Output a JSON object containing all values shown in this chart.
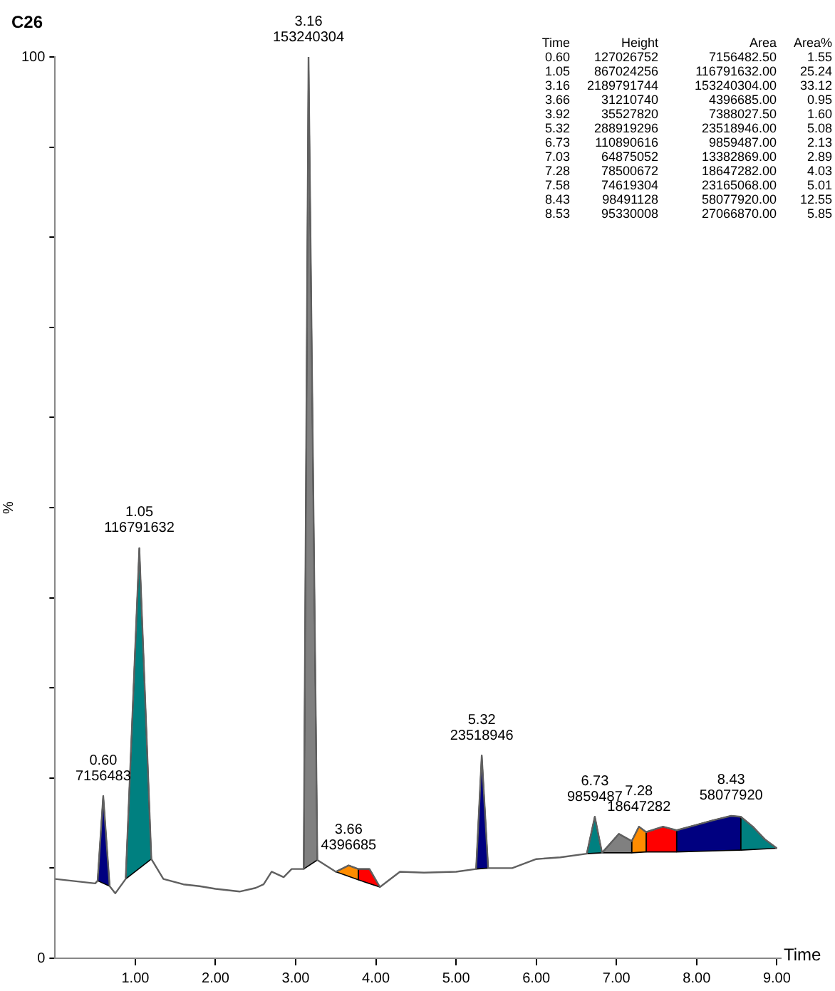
{
  "chart_data": {
    "type": "line",
    "title": "C26",
    "xlabel": "Time",
    "ylabel": "%",
    "xlim": [
      0,
      9.05
    ],
    "ylim": [
      0,
      100
    ],
    "xticks": [
      {
        "value": 1,
        "label": "1.00"
      },
      {
        "value": 2,
        "label": "2.00"
      },
      {
        "value": 3,
        "label": "3.00"
      },
      {
        "value": 4,
        "label": "4.00"
      },
      {
        "value": 5,
        "label": "5.00"
      },
      {
        "value": 6,
        "label": "6.00"
      },
      {
        "value": 7,
        "label": "7.00"
      },
      {
        "value": 8,
        "label": "8.00"
      },
      {
        "value": 9,
        "label": "9.00"
      }
    ],
    "yticks": [
      0,
      {
        "value": 10,
        "label": null
      },
      {
        "value": 20,
        "label": null
      },
      {
        "value": 30,
        "label": null
      },
      {
        "value": 40,
        "label": null
      },
      {
        "value": 50,
        "label": null
      },
      {
        "value": 60,
        "label": null
      },
      {
        "value": 70,
        "label": null
      },
      {
        "value": 80,
        "label": null
      },
      {
        "value": 90,
        "label": null
      },
      100
    ],
    "grid": false,
    "legend": false,
    "marker": "none",
    "line_style": "solid",
    "series": [
      {
        "type": "area",
        "color": "#000080",
        "x": [
          0.53,
          0.6,
          0.68
        ],
        "values": [
          8.6,
          18,
          8.0
        ]
      },
      {
        "type": "area",
        "color": "#008080",
        "x": [
          0.88,
          1.05,
          1.2
        ],
        "values": [
          8.8,
          45.5,
          11
        ]
      },
      {
        "type": "area",
        "color": "#808080",
        "x": [
          3.1,
          3.16,
          3.27
        ],
        "values": [
          9.9,
          100,
          10.9
        ]
      },
      {
        "type": "area",
        "color": "#ff8c00",
        "x": [
          3.5,
          3.66,
          3.78,
          3.78
        ],
        "values": [
          9.6,
          10.3,
          9.9,
          8.7
        ]
      },
      {
        "type": "area",
        "color": "#ff0000",
        "x": [
          3.78,
          3.78,
          3.92,
          4.05
        ],
        "values": [
          8.7,
          9.9,
          9.9,
          7.9
        ]
      },
      {
        "type": "area",
        "color": "#000080",
        "x": [
          5.25,
          5.32,
          5.4
        ],
        "values": [
          9.9,
          22.5,
          10
        ]
      },
      {
        "type": "area",
        "color": "#008080",
        "x": [
          6.63,
          6.73,
          6.82
        ],
        "values": [
          11.6,
          15.7,
          11.7
        ]
      },
      {
        "type": "area",
        "color": "#808080",
        "x": [
          6.82,
          7.03,
          7.19,
          7.19
        ],
        "values": [
          11.7,
          13.8,
          13.0,
          11.7
        ]
      },
      {
        "type": "area",
        "color": "#ff8c00",
        "x": [
          7.19,
          7.19,
          7.28,
          7.37,
          7.37
        ],
        "values": [
          11.7,
          13.0,
          14.6,
          14.0,
          11.8
        ]
      },
      {
        "type": "area",
        "color": "#ff0000",
        "x": [
          7.37,
          7.37,
          7.58,
          7.75,
          7.75
        ],
        "values": [
          11.8,
          14.0,
          14.6,
          14.2,
          11.8
        ]
      },
      {
        "type": "area",
        "color": "#000080",
        "x": [
          7.75,
          7.75,
          8.0,
          8.2,
          8.43,
          8.55,
          8.55
        ],
        "values": [
          11.8,
          14.2,
          14.8,
          15.3,
          15.8,
          15.7,
          12.0
        ]
      },
      {
        "type": "area",
        "color": "#008080",
        "x": [
          8.55,
          8.55,
          8.7,
          8.85,
          9.0
        ],
        "values": [
          12.0,
          15.7,
          14.6,
          13.2,
          12.2
        ]
      },
      {
        "type": "line",
        "color": "#606060",
        "x": [
          0,
          0.3,
          0.5,
          0.53,
          0.6,
          0.68,
          0.75,
          0.88,
          1.05,
          1.2,
          1.35,
          1.6,
          1.8,
          2.0,
          2.3,
          2.5,
          2.6,
          2.7,
          2.85,
          2.95,
          3.1,
          3.16,
          3.27,
          3.5,
          3.66,
          3.78,
          3.92,
          4.05,
          4.3,
          4.6,
          5.0,
          5.25,
          5.32,
          5.4,
          5.7,
          6.0,
          6.3,
          6.63,
          6.73,
          6.82,
          7.03,
          7.19,
          7.28,
          7.37,
          7.58,
          7.75,
          8.0,
          8.2,
          8.43,
          8.55,
          8.7,
          8.85,
          9.0
        ],
        "values": [
          8.8,
          8.5,
          8.3,
          8.6,
          18,
          8.0,
          7.2,
          8.8,
          45.5,
          11,
          8.8,
          8.2,
          8.0,
          7.7,
          7.4,
          7.8,
          8.2,
          9.6,
          9.0,
          9.9,
          9.9,
          100,
          10.9,
          9.6,
          10.3,
          9.9,
          9.9,
          7.9,
          9.6,
          9.5,
          9.6,
          9.9,
          22.5,
          10,
          10,
          11,
          11.2,
          11.6,
          15.7,
          11.7,
          13.8,
          13.0,
          14.6,
          14.0,
          14.6,
          14.2,
          14.8,
          15.3,
          15.8,
          15.7,
          14.6,
          13.2,
          12.2
        ]
      }
    ],
    "annotations": [
      {
        "text": "0.60\n7156483",
        "x": 0.6,
        "y": 18
      },
      {
        "text": "1.05\n116791632",
        "x": 1.05,
        "y": 45.5
      },
      {
        "text": "3.16\n153240304",
        "x": 3.16,
        "y": 100
      },
      {
        "text": "3.66\n4396685",
        "x": 3.66,
        "y": 10.3
      },
      {
        "text": "5.32\n23518946",
        "x": 5.32,
        "y": 22.5
      },
      {
        "text": "6.73\n9859487",
        "x": 6.73,
        "y": 15.7
      },
      {
        "text": "7.28\n18647282",
        "x": 7.28,
        "y": 14.6
      },
      {
        "text": "8.43\n58077920",
        "x": 8.43,
        "y": 15.8
      },
      "Time Height Area Area%",
      "0.60 127026752 7156482.50 1.55",
      "1.05 867024256 116791632.00 25.24",
      "3.16 2189791744 153240304.00 33.12",
      "3.66 31210740 4396685.00 0.95",
      "3.92 35527820 7388027.50 1.60",
      "5.32 288919296 23518946.00 5.08",
      "6.73 110890616 9859487.00 2.13",
      "7.03 64875052 13382869.00 2.89",
      "7.28 78500672 18647282.00 4.03",
      "7.58 74619304 23165068.00 5.01",
      "8.43 98491128 58077920.00 12.55",
      "8.53 95330008 27066870.00 5.85"
    ]
  }
}
